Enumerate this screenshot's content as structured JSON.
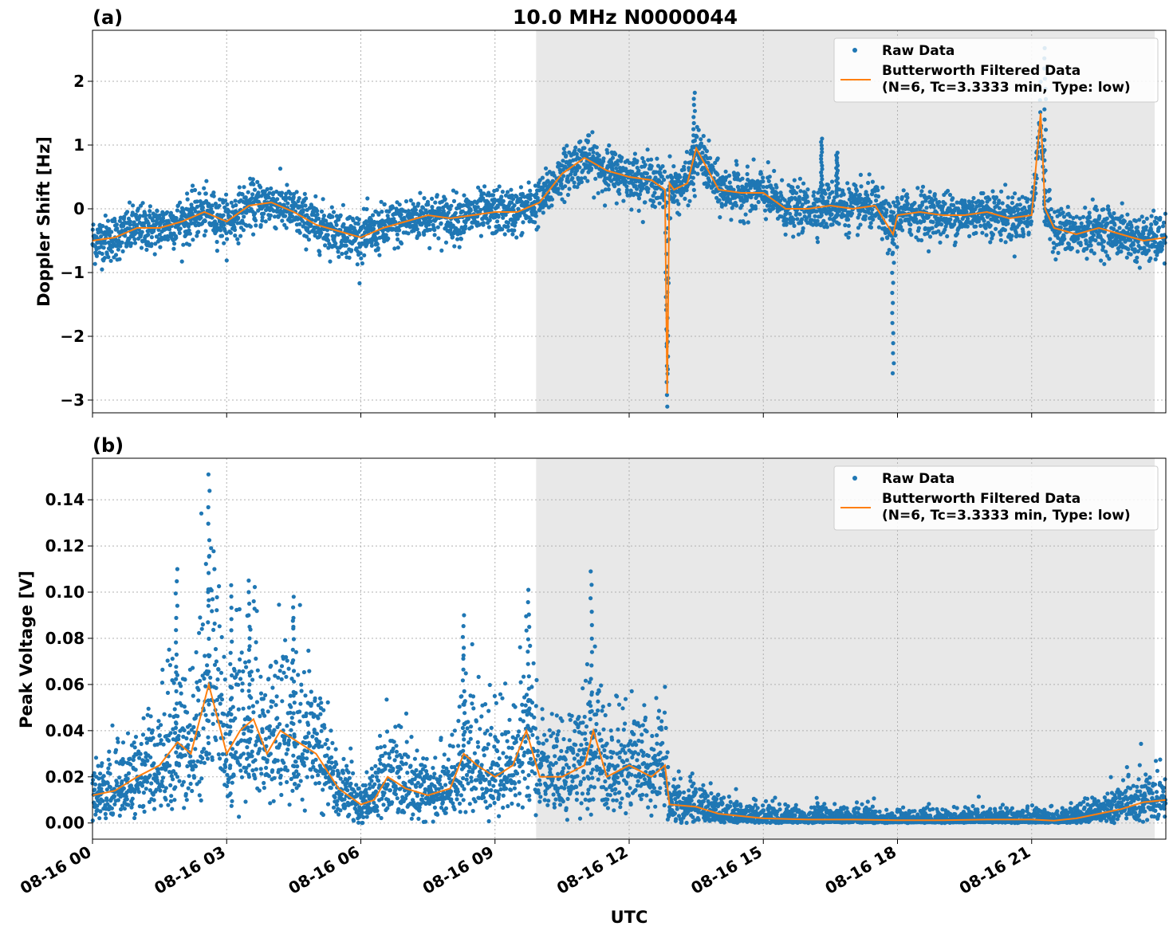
{
  "title": "10.0 MHz N0000044",
  "xlabel": "UTC",
  "x_ticks": [
    "08-16 00",
    "08-16 03",
    "08-16 06",
    "08-16 09",
    "08-16 12",
    "08-16 15",
    "08-16 18",
    "08-16 21"
  ],
  "colors": {
    "raw": "#1f77b4",
    "filtered": "#ff7f0e",
    "shade": "#e8e8e8"
  },
  "legend": {
    "raw_label": "Raw Data",
    "filtered_line1": "Butterworth Filtered Data",
    "filtered_line2": "(N=6, Tc=3.3333 min, Type: low)",
    "placement": "top-right"
  },
  "chart_data": [
    {
      "type": "scatter",
      "panel_label": "(a)",
      "ylabel": "Doppler Shift [Hz]",
      "xlim": [
        0,
        24
      ],
      "ylim": [
        -3.2,
        2.8
      ],
      "yticks": [
        -3,
        -2,
        -1,
        0,
        1,
        2
      ],
      "ytick_labels": [
        "−3",
        "−2",
        "−1",
        "0",
        "1",
        "2"
      ],
      "grid": true,
      "shaded_x_range": [
        9.92,
        23.75
      ],
      "series": [
        {
          "name": "Butterworth Filtered Data",
          "x": [
            0,
            0.5,
            1,
            1.5,
            2,
            2.5,
            3,
            3.5,
            4,
            4.5,
            5,
            5.5,
            6,
            6.5,
            7,
            7.5,
            8,
            8.5,
            9,
            9.5,
            10,
            10.5,
            11,
            11.5,
            12,
            12.5,
            12.8,
            12.85,
            12.9,
            13,
            13.3,
            13.5,
            14,
            14.5,
            15,
            15.5,
            16,
            16.5,
            17,
            17.5,
            17.9,
            18,
            18.5,
            19,
            19.5,
            20,
            20.5,
            21,
            21.2,
            21.3,
            21.5,
            22,
            22.5,
            23,
            23.5,
            24
          ],
          "y": [
            -0.5,
            -0.45,
            -0.3,
            -0.3,
            -0.2,
            -0.05,
            -0.2,
            0.05,
            0.1,
            -0.05,
            -0.25,
            -0.35,
            -0.45,
            -0.3,
            -0.2,
            -0.1,
            -0.15,
            -0.1,
            -0.05,
            -0.05,
            0.1,
            0.55,
            0.8,
            0.6,
            0.5,
            0.45,
            0.3,
            -2.9,
            0.4,
            0.3,
            0.4,
            0.95,
            0.3,
            0.25,
            0.25,
            0.0,
            0.0,
            0.05,
            0.0,
            0.05,
            -0.4,
            -0.1,
            -0.05,
            -0.1,
            -0.1,
            -0.05,
            -0.15,
            -0.1,
            1.5,
            0.0,
            -0.3,
            -0.4,
            -0.3,
            -0.4,
            -0.5,
            -0.45
          ]
        },
        {
          "name": "Raw Data",
          "spikes": [
            {
              "x": 12.85,
              "ymin": -2.92,
              "ymax": 0.5
            },
            {
              "x": 13.45,
              "ymin": 0.2,
              "ymax": 1.82
            },
            {
              "x": 17.9,
              "ymin": -2.58,
              "ymax": 0.1
            },
            {
              "x": 21.3,
              "ymin": -0.2,
              "ymax": 2.52
            },
            {
              "x": 16.3,
              "ymin": 0.2,
              "ymax": 1.1
            },
            {
              "x": 16.65,
              "ymin": 0.2,
              "ymax": 0.88
            }
          ]
        }
      ]
    },
    {
      "type": "scatter",
      "panel_label": "(b)",
      "ylabel": "Peak Voltage [V]",
      "xlim": [
        0,
        24
      ],
      "ylim": [
        -0.007,
        0.158
      ],
      "yticks": [
        0.0,
        0.02,
        0.04,
        0.06,
        0.08,
        0.1,
        0.12,
        0.14
      ],
      "ytick_labels": [
        "0.00",
        "0.02",
        "0.04",
        "0.06",
        "0.08",
        "0.10",
        "0.12",
        "0.14"
      ],
      "grid": true,
      "shaded_x_range": [
        9.92,
        23.75
      ],
      "series": [
        {
          "name": "Butterworth Filtered Data",
          "x": [
            0,
            0.5,
            1,
            1.5,
            1.9,
            2.2,
            2.6,
            3,
            3.3,
            3.6,
            3.9,
            4.2,
            4.6,
            5,
            5.5,
            6,
            6.3,
            6.6,
            7,
            7.5,
            8,
            8.3,
            8.6,
            9,
            9.4,
            9.7,
            10,
            10.5,
            11,
            11.2,
            11.5,
            12,
            12.5,
            12.8,
            12.9,
            13.5,
            14,
            14.5,
            15,
            16,
            17,
            18,
            19,
            20,
            21,
            21.5,
            22,
            22.5,
            23,
            23.5,
            24
          ],
          "y": [
            0.012,
            0.014,
            0.02,
            0.025,
            0.035,
            0.03,
            0.06,
            0.03,
            0.04,
            0.045,
            0.03,
            0.04,
            0.035,
            0.03,
            0.015,
            0.008,
            0.01,
            0.02,
            0.015,
            0.012,
            0.015,
            0.03,
            0.025,
            0.02,
            0.025,
            0.04,
            0.02,
            0.02,
            0.025,
            0.04,
            0.02,
            0.025,
            0.02,
            0.025,
            0.008,
            0.007,
            0.004,
            0.003,
            0.002,
            0.0015,
            0.0015,
            0.0012,
            0.0012,
            0.0015,
            0.0015,
            0.001,
            0.002,
            0.004,
            0.006,
            0.009,
            0.01
          ]
        },
        {
          "name": "Raw Data",
          "spikes": [
            {
              "x": 2.6,
              "ymin": 0.03,
              "ymax": 0.151
            },
            {
              "x": 1.88,
              "ymin": 0.02,
              "ymax": 0.11
            },
            {
              "x": 3.1,
              "ymin": 0.02,
              "ymax": 0.103
            },
            {
              "x": 3.5,
              "ymin": 0.02,
              "ymax": 0.105
            },
            {
              "x": 4.5,
              "ymin": 0.02,
              "ymax": 0.098
            },
            {
              "x": 9.75,
              "ymin": 0.01,
              "ymax": 0.101
            },
            {
              "x": 11.15,
              "ymin": 0.01,
              "ymax": 0.109
            },
            {
              "x": 8.3,
              "ymin": 0.01,
              "ymax": 0.09
            }
          ]
        }
      ]
    }
  ]
}
